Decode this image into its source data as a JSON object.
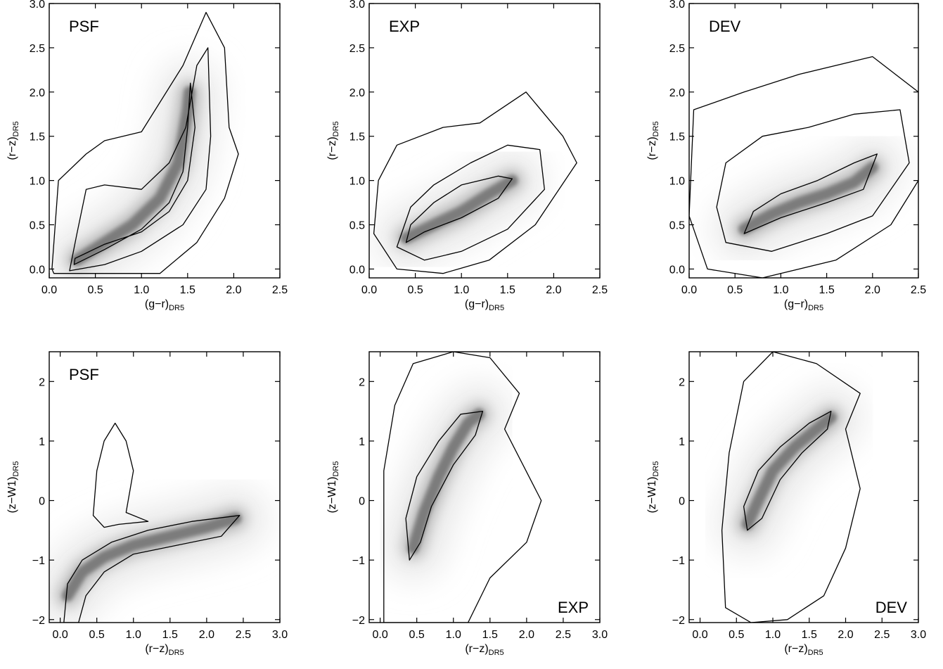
{
  "chart_data": [
    {
      "type": "heatmap",
      "panel_label": "PSF",
      "xlabel": {
        "main": "(g−r)",
        "sub": "DR5"
      },
      "ylabel": {
        "main": "(r−z)",
        "sub": "DR5"
      },
      "xlim": [
        0.0,
        2.5
      ],
      "ylim": [
        -0.1,
        3.0
      ],
      "xticks": [
        "0.0",
        "0.5",
        "1.0",
        "1.5",
        "2.0",
        "2.5"
      ],
      "yticks": [
        "0.0",
        "0.5",
        "1.0",
        "1.5",
        "2.0",
        "2.5",
        "3.0"
      ],
      "label_position": "top-left",
      "density_locus": [
        [
          0.3,
          0.1
        ],
        [
          0.6,
          0.3
        ],
        [
          0.9,
          0.5
        ],
        [
          1.2,
          0.8
        ],
        [
          1.4,
          1.2
        ],
        [
          1.5,
          1.8
        ],
        [
          1.52,
          2.0
        ]
      ],
      "contours": [
        [
          [
            0.27,
            0.05
          ],
          [
            0.6,
            0.22
          ],
          [
            1.0,
            0.45
          ],
          [
            1.3,
            0.75
          ],
          [
            1.45,
            1.1
          ],
          [
            1.5,
            1.6
          ],
          [
            1.53,
            2.1
          ],
          [
            1.58,
            1.6
          ],
          [
            1.5,
            1.0
          ],
          [
            1.3,
            0.65
          ],
          [
            1.0,
            0.42
          ],
          [
            0.6,
            0.28
          ],
          [
            0.28,
            0.12
          ]
        ],
        [
          [
            0.22,
            -0.02
          ],
          [
            0.6,
            0.05
          ],
          [
            1.0,
            0.2
          ],
          [
            1.45,
            0.5
          ],
          [
            1.7,
            0.9
          ],
          [
            1.75,
            1.5
          ],
          [
            1.72,
            2.5
          ],
          [
            1.6,
            2.3
          ],
          [
            1.48,
            1.6
          ],
          [
            1.3,
            1.2
          ],
          [
            1.0,
            0.9
          ],
          [
            0.6,
            0.95
          ],
          [
            0.4,
            0.9
          ],
          [
            0.3,
            0.4
          ]
        ],
        [
          [
            0.03,
            0.0
          ],
          [
            0.1,
            1.0
          ],
          [
            0.4,
            1.3
          ],
          [
            0.6,
            1.45
          ],
          [
            1.0,
            1.55
          ],
          [
            1.45,
            2.3
          ],
          [
            1.7,
            2.9
          ],
          [
            1.9,
            2.5
          ],
          [
            1.95,
            1.6
          ],
          [
            2.05,
            1.3
          ],
          [
            1.9,
            0.8
          ],
          [
            1.6,
            0.3
          ],
          [
            1.2,
            -0.05
          ],
          [
            0.6,
            -0.05
          ],
          [
            0.05,
            -0.05
          ]
        ]
      ]
    },
    {
      "type": "heatmap",
      "panel_label": "EXP",
      "xlabel": {
        "main": "(g−r)",
        "sub": "DR5"
      },
      "ylabel": {
        "main": "(r−z)",
        "sub": "DR5"
      },
      "xlim": [
        0.0,
        2.5
      ],
      "ylim": [
        -0.1,
        3.0
      ],
      "xticks": [
        "0.0",
        "0.5",
        "1.0",
        "1.5",
        "2.0",
        "2.5"
      ],
      "yticks": [
        "0.0",
        "0.5",
        "1.0",
        "1.5",
        "2.0",
        "2.5",
        "3.0"
      ],
      "label_position": "top-left",
      "density_locus": [
        [
          0.4,
          0.35
        ],
        [
          0.7,
          0.5
        ],
        [
          1.0,
          0.65
        ],
        [
          1.3,
          0.85
        ],
        [
          1.55,
          1.0
        ]
      ],
      "contours": [
        [
          [
            0.4,
            0.3
          ],
          [
            0.6,
            0.42
          ],
          [
            1.0,
            0.58
          ],
          [
            1.4,
            0.8
          ],
          [
            1.55,
            1.02
          ],
          [
            1.4,
            1.05
          ],
          [
            1.0,
            0.95
          ],
          [
            0.7,
            0.75
          ],
          [
            0.45,
            0.5
          ]
        ],
        [
          [
            0.3,
            0.25
          ],
          [
            0.6,
            0.1
          ],
          [
            1.0,
            0.2
          ],
          [
            1.5,
            0.45
          ],
          [
            1.9,
            0.9
          ],
          [
            1.85,
            1.35
          ],
          [
            1.5,
            1.4
          ],
          [
            1.1,
            1.2
          ],
          [
            0.7,
            0.95
          ],
          [
            0.45,
            0.7
          ]
        ],
        [
          [
            0.05,
            0.4
          ],
          [
            0.3,
            0.0
          ],
          [
            0.8,
            -0.05
          ],
          [
            1.3,
            0.1
          ],
          [
            1.8,
            0.5
          ],
          [
            2.25,
            1.2
          ],
          [
            2.1,
            1.5
          ],
          [
            1.7,
            2.0
          ],
          [
            1.2,
            1.65
          ],
          [
            0.8,
            1.6
          ],
          [
            0.3,
            1.4
          ],
          [
            0.1,
            1.0
          ]
        ]
      ]
    },
    {
      "type": "heatmap",
      "panel_label": "DEV",
      "xlabel": {
        "main": "(g−r)",
        "sub": "DR5"
      },
      "ylabel": {
        "main": "(r−z)",
        "sub": "DR5"
      },
      "xlim": [
        0.0,
        2.5
      ],
      "ylim": [
        -0.1,
        3.0
      ],
      "xticks": [
        "0.0",
        "0.5",
        "1.0",
        "1.5",
        "2.0",
        "2.5"
      ],
      "yticks": [
        "0.0",
        "0.5",
        "1.0",
        "1.5",
        "2.0",
        "2.5",
        "3.0"
      ],
      "label_position": "top-left",
      "density_locus": [
        [
          0.6,
          0.45
        ],
        [
          0.9,
          0.62
        ],
        [
          1.2,
          0.75
        ],
        [
          1.5,
          0.85
        ],
        [
          1.8,
          0.98
        ],
        [
          2.0,
          1.15
        ]
      ],
      "contours": [
        [
          [
            0.6,
            0.4
          ],
          [
            1.0,
            0.58
          ],
          [
            1.5,
            0.75
          ],
          [
            1.9,
            0.9
          ],
          [
            2.05,
            1.3
          ],
          [
            1.8,
            1.2
          ],
          [
            1.4,
            1.0
          ],
          [
            1.0,
            0.85
          ],
          [
            0.7,
            0.65
          ]
        ],
        [
          [
            0.4,
            0.3
          ],
          [
            0.9,
            0.2
          ],
          [
            1.5,
            0.4
          ],
          [
            2.0,
            0.6
          ],
          [
            2.4,
            1.2
          ],
          [
            2.3,
            1.8
          ],
          [
            1.8,
            1.75
          ],
          [
            1.3,
            1.6
          ],
          [
            0.8,
            1.5
          ],
          [
            0.4,
            1.2
          ],
          [
            0.3,
            0.7
          ]
        ],
        [
          [
            0.0,
            0.6
          ],
          [
            0.2,
            0.0
          ],
          [
            0.8,
            -0.1
          ],
          [
            1.6,
            0.1
          ],
          [
            2.2,
            0.5
          ],
          [
            2.5,
            1.0
          ],
          [
            2.5,
            2.0
          ],
          [
            2.0,
            2.4
          ],
          [
            1.2,
            2.2
          ],
          [
            0.6,
            2.0
          ],
          [
            0.05,
            1.8
          ]
        ]
      ]
    },
    {
      "type": "heatmap",
      "panel_label": "PSF",
      "xlabel": {
        "main": "(r−z)",
        "sub": "DR5"
      },
      "ylabel": {
        "main": "(z−W1)",
        "sub": "DR5"
      },
      "xlim": [
        -0.15,
        3.0
      ],
      "ylim": [
        -2.05,
        2.5
      ],
      "xticks": [
        "0.0",
        "0.5",
        "1.0",
        "1.5",
        "2.0",
        "2.5",
        "3.0"
      ],
      "yticks": [
        "−2",
        "−1",
        "0",
        "1",
        "2"
      ],
      "label_position": "top-left",
      "density_locus": [
        [
          0.1,
          -1.6
        ],
        [
          0.3,
          -1.2
        ],
        [
          0.6,
          -0.95
        ],
        [
          1.0,
          -0.75
        ],
        [
          1.5,
          -0.6
        ],
        [
          2.0,
          -0.45
        ],
        [
          2.4,
          -0.3
        ]
      ],
      "contours": [
        [
          [
            0.05,
            -2.05
          ],
          [
            0.1,
            -1.4
          ],
          [
            0.3,
            -1.0
          ],
          [
            0.7,
            -0.7
          ],
          [
            1.2,
            -0.5
          ],
          [
            1.8,
            -0.35
          ],
          [
            2.45,
            -0.25
          ],
          [
            2.2,
            -0.6
          ],
          [
            1.6,
            -0.75
          ],
          [
            1.0,
            -0.9
          ],
          [
            0.6,
            -1.2
          ],
          [
            0.35,
            -1.6
          ],
          [
            0.25,
            -2.05
          ]
        ],
        [
          [
            0.45,
            -0.25
          ],
          [
            0.5,
            0.5
          ],
          [
            0.6,
            1.0
          ],
          [
            0.75,
            1.3
          ],
          [
            0.9,
            1.0
          ],
          [
            1.0,
            0.5
          ],
          [
            0.9,
            -0.2
          ],
          [
            1.2,
            -0.35
          ],
          [
            0.8,
            -0.4
          ],
          [
            0.6,
            -0.45
          ]
        ]
      ]
    },
    {
      "type": "heatmap",
      "panel_label": "EXP",
      "xlabel": {
        "main": "(r−z)",
        "sub": "DR5"
      },
      "ylabel": {
        "main": "(z−W1)",
        "sub": "DR5"
      },
      "xlim": [
        -0.15,
        3.0
      ],
      "ylim": [
        -2.05,
        2.5
      ],
      "xticks": [
        "0.0",
        "0.5",
        "1.0",
        "1.5",
        "2.0",
        "2.5",
        "3.0"
      ],
      "yticks": [
        "−2",
        "−1",
        "0",
        "1",
        "2"
      ],
      "label_position": "bottom-right",
      "density_locus": [
        [
          0.45,
          -0.8
        ],
        [
          0.6,
          -0.2
        ],
        [
          0.8,
          0.4
        ],
        [
          1.0,
          0.9
        ],
        [
          1.2,
          1.3
        ],
        [
          1.35,
          1.45
        ]
      ],
      "contours": [
        [
          [
            0.4,
            -1.0
          ],
          [
            0.35,
            -0.3
          ],
          [
            0.5,
            0.4
          ],
          [
            0.8,
            1.0
          ],
          [
            1.1,
            1.45
          ],
          [
            1.4,
            1.5
          ],
          [
            1.3,
            1.1
          ],
          [
            1.0,
            0.6
          ],
          [
            0.7,
            -0.1
          ],
          [
            0.55,
            -0.7
          ]
        ],
        [
          [
            0.05,
            -2.05
          ],
          [
            0.05,
            0.5
          ],
          [
            0.2,
            1.6
          ],
          [
            0.45,
            2.3
          ],
          [
            1.0,
            2.5
          ],
          [
            1.5,
            2.4
          ],
          [
            1.9,
            1.8
          ],
          [
            1.7,
            1.2
          ],
          [
            2.2,
            0.0
          ],
          [
            2.0,
            -0.7
          ],
          [
            1.5,
            -1.3
          ],
          [
            1.2,
            -2.05
          ]
        ]
      ]
    },
    {
      "type": "heatmap",
      "panel_label": "DEV",
      "xlabel": {
        "main": "(r−z)",
        "sub": "DR5"
      },
      "ylabel": {
        "main": "(z−W1)",
        "sub": "DR5"
      },
      "xlim": [
        -0.15,
        3.0
      ],
      "ylim": [
        -2.05,
        2.5
      ],
      "xticks": [
        "0.0",
        "0.5",
        "1.0",
        "1.5",
        "2.0",
        "2.5",
        "3.0"
      ],
      "yticks": [
        "−2",
        "−1",
        "0",
        "1",
        "2"
      ],
      "label_position": "bottom-right",
      "density_locus": [
        [
          0.65,
          -0.4
        ],
        [
          0.8,
          0.0
        ],
        [
          1.0,
          0.5
        ],
        [
          1.3,
          0.9
        ],
        [
          1.6,
          1.2
        ],
        [
          1.8,
          1.4
        ]
      ],
      "contours": [
        [
          [
            0.65,
            -0.5
          ],
          [
            0.6,
            -0.1
          ],
          [
            0.8,
            0.5
          ],
          [
            1.1,
            0.9
          ],
          [
            1.5,
            1.3
          ],
          [
            1.8,
            1.5
          ],
          [
            1.75,
            1.2
          ],
          [
            1.4,
            0.8
          ],
          [
            1.1,
            0.35
          ],
          [
            0.85,
            -0.3
          ]
        ],
        [
          [
            0.35,
            -1.8
          ],
          [
            0.3,
            -0.5
          ],
          [
            0.4,
            0.8
          ],
          [
            0.6,
            2.0
          ],
          [
            1.0,
            2.5
          ],
          [
            1.6,
            2.3
          ],
          [
            2.2,
            1.8
          ],
          [
            2.0,
            1.2
          ],
          [
            2.2,
            0.2
          ],
          [
            2.0,
            -0.8
          ],
          [
            1.7,
            -1.6
          ],
          [
            1.2,
            -2.0
          ],
          [
            0.7,
            -2.05
          ]
        ]
      ]
    }
  ]
}
